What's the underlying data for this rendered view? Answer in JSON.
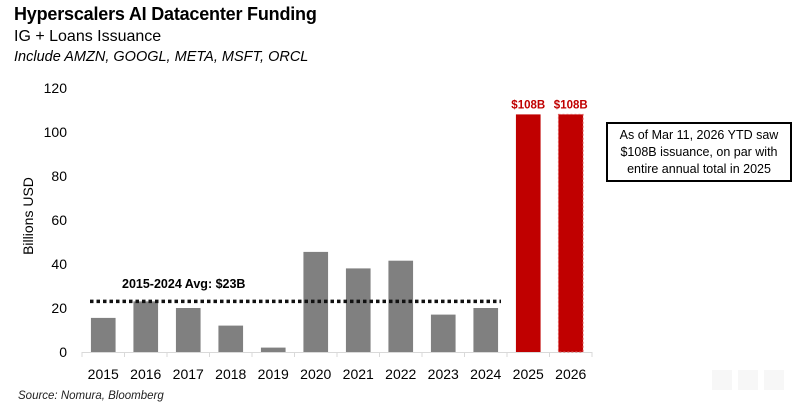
{
  "header": {
    "title": "Hyperscalers AI Datacenter Funding",
    "subtitle": "IG + Loans Issuance",
    "subtitle_note": "Include AMZN, GOOGL, META, MSFT, ORCL"
  },
  "footer": {
    "source": "Source: Nomura, Bloomberg"
  },
  "annotation": {
    "line1": "As of Mar 11, 2026 YTD saw",
    "line2": "$108B issuance, on par with",
    "line3": "entire annual total in 2025"
  },
  "average_line": {
    "label": "2015-2024 Avg: $23B",
    "value": 23,
    "style": "dotted"
  },
  "colors": {
    "historical_bar": "#808080",
    "highlight_bar": "#C00000",
    "highlight_label": "#C00000"
  },
  "chart_data": {
    "type": "bar",
    "title": "Hyperscalers AI Datacenter Funding",
    "subtitle": "IG + Loans Issuance",
    "xlabel": "",
    "ylabel": "Billions USD",
    "ylim": [
      0,
      120
    ],
    "yticks": [
      0,
      20,
      40,
      60,
      80,
      100,
      120
    ],
    "grid": false,
    "legend": "none",
    "categories": [
      "2015",
      "2016",
      "2017",
      "2018",
      "2019",
      "2020",
      "2021",
      "2022",
      "2023",
      "2024",
      "2025",
      "2026"
    ],
    "values": [
      15.5,
      23,
      20,
      12,
      2,
      45.5,
      38,
      41.5,
      17,
      20,
      108,
      108
    ],
    "highlight": [
      false,
      false,
      false,
      false,
      false,
      false,
      false,
      false,
      false,
      false,
      true,
      true
    ],
    "data_labels": [
      "",
      "",
      "",
      "",
      "",
      "",
      "",
      "",
      "",
      "",
      "$108B",
      "$108B"
    ],
    "reference_line": {
      "label": "2015-2024 Avg: $23B",
      "value": 23,
      "x_range": [
        "2015",
        "2024"
      ]
    },
    "annotations": [
      "As of Mar 11, 2026 YTD saw $108B issuance, on par with entire annual total in 2025"
    ]
  }
}
